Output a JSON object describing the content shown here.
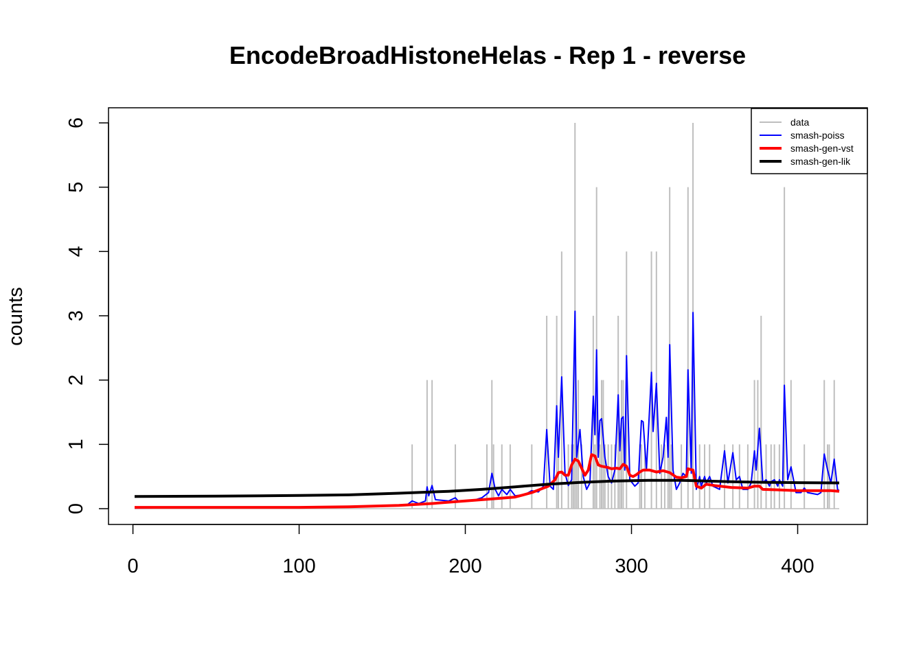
{
  "chart_data": {
    "type": "line",
    "title": "EncodeBroadHistoneHelas - Rep 1 - reverse",
    "xlabel": "",
    "ylabel": "counts",
    "xlim": [
      1,
      425
    ],
    "ylim": [
      0,
      6
    ],
    "x_ticks": [
      0,
      100,
      200,
      300,
      400
    ],
    "y_ticks": [
      0,
      1,
      2,
      3,
      4,
      5,
      6
    ],
    "grid": false,
    "legend_position": "top-right",
    "colors": {
      "data": "#bebebe",
      "smash_poiss": "#0000ff",
      "smash_gen_vst": "#ff0000",
      "smash_gen_lik": "#000000"
    },
    "legend": [
      "data",
      "smash-poiss",
      "smash-gen-vst",
      "smash-gen-lik"
    ],
    "data_counts": [
      [
        168,
        1
      ],
      [
        177,
        2
      ],
      [
        180,
        2
      ],
      [
        194,
        1
      ],
      [
        213,
        1
      ],
      [
        216,
        2
      ],
      [
        217,
        1
      ],
      [
        222,
        1
      ],
      [
        227,
        1
      ],
      [
        240,
        1
      ],
      [
        249,
        3
      ],
      [
        255,
        3
      ],
      [
        256,
        1
      ],
      [
        258,
        4
      ],
      [
        262,
        1
      ],
      [
        264,
        1
      ],
      [
        265,
        1
      ],
      [
        266,
        6
      ],
      [
        267,
        1
      ],
      [
        268,
        2
      ],
      [
        270,
        1
      ],
      [
        277,
        3
      ],
      [
        278,
        1
      ],
      [
        279,
        5
      ],
      [
        281,
        1
      ],
      [
        282,
        2
      ],
      [
        283,
        2
      ],
      [
        284,
        1
      ],
      [
        286,
        1
      ],
      [
        288,
        1
      ],
      [
        290,
        1
      ],
      [
        292,
        3
      ],
      [
        293,
        1
      ],
      [
        294,
        2
      ],
      [
        295,
        2
      ],
      [
        297,
        4
      ],
      [
        305,
        1
      ],
      [
        306,
        1
      ],
      [
        308,
        1
      ],
      [
        312,
        4
      ],
      [
        315,
        4
      ],
      [
        318,
        1
      ],
      [
        320,
        1
      ],
      [
        322,
        1
      ],
      [
        323,
        5
      ],
      [
        324,
        1
      ],
      [
        330,
        1
      ],
      [
        334,
        5
      ],
      [
        337,
        6
      ],
      [
        341,
        1
      ],
      [
        344,
        1
      ],
      [
        347,
        1
      ],
      [
        356,
        1
      ],
      [
        361,
        1
      ],
      [
        365,
        1
      ],
      [
        370,
        1
      ],
      [
        374,
        2
      ],
      [
        376,
        2
      ],
      [
        378,
        3
      ],
      [
        381,
        1
      ],
      [
        384,
        1
      ],
      [
        386,
        1
      ],
      [
        389,
        1
      ],
      [
        392,
        5
      ],
      [
        396,
        2
      ],
      [
        404,
        1
      ],
      [
        416,
        2
      ],
      [
        418,
        1
      ],
      [
        419,
        1
      ],
      [
        422,
        2
      ]
    ],
    "smash_poiss": [
      [
        1,
        0.01
      ],
      [
        100,
        0.02
      ],
      [
        150,
        0.04
      ],
      [
        165,
        0.06
      ],
      [
        168,
        0.12
      ],
      [
        172,
        0.08
      ],
      [
        176,
        0.12
      ],
      [
        177,
        0.34
      ],
      [
        178,
        0.2
      ],
      [
        180,
        0.36
      ],
      [
        182,
        0.14
      ],
      [
        190,
        0.12
      ],
      [
        194,
        0.17
      ],
      [
        196,
        0.11
      ],
      [
        205,
        0.13
      ],
      [
        210,
        0.17
      ],
      [
        214,
        0.25
      ],
      [
        216,
        0.55
      ],
      [
        218,
        0.3
      ],
      [
        220,
        0.2
      ],
      [
        222,
        0.3
      ],
      [
        225,
        0.22
      ],
      [
        227,
        0.3
      ],
      [
        230,
        0.2
      ],
      [
        236,
        0.22
      ],
      [
        240,
        0.28
      ],
      [
        244,
        0.26
      ],
      [
        247,
        0.35
      ],
      [
        249,
        1.23
      ],
      [
        251,
        0.35
      ],
      [
        253,
        0.3
      ],
      [
        255,
        1.6
      ],
      [
        256,
        0.8
      ],
      [
        258,
        2.05
      ],
      [
        260,
        0.55
      ],
      [
        262,
        0.36
      ],
      [
        264,
        0.45
      ],
      [
        266,
        3.07
      ],
      [
        267,
        0.8
      ],
      [
        269,
        1.23
      ],
      [
        271,
        0.5
      ],
      [
        273,
        0.3
      ],
      [
        275,
        0.4
      ],
      [
        277,
        1.75
      ],
      [
        278,
        1.15
      ],
      [
        279,
        2.47
      ],
      [
        280,
        0.8
      ],
      [
        281,
        1.37
      ],
      [
        282,
        1.4
      ],
      [
        284,
        0.8
      ],
      [
        286,
        0.5
      ],
      [
        288,
        0.4
      ],
      [
        290,
        0.6
      ],
      [
        292,
        1.77
      ],
      [
        293,
        0.9
      ],
      [
        294,
        1.4
      ],
      [
        295,
        1.43
      ],
      [
        296,
        0.6
      ],
      [
        297,
        2.38
      ],
      [
        299,
        0.45
      ],
      [
        302,
        0.35
      ],
      [
        304,
        0.4
      ],
      [
        306,
        1.37
      ],
      [
        307,
        1.35
      ],
      [
        309,
        0.6
      ],
      [
        312,
        2.12
      ],
      [
        313,
        1.2
      ],
      [
        315,
        1.95
      ],
      [
        317,
        0.55
      ],
      [
        319,
        0.8
      ],
      [
        321,
        1.42
      ],
      [
        322,
        0.8
      ],
      [
        323,
        2.55
      ],
      [
        325,
        0.6
      ],
      [
        327,
        0.3
      ],
      [
        329,
        0.4
      ],
      [
        331,
        0.55
      ],
      [
        333,
        0.5
      ],
      [
        334,
        2.16
      ],
      [
        336,
        0.55
      ],
      [
        337,
        3.05
      ],
      [
        339,
        0.3
      ],
      [
        341,
        0.5
      ],
      [
        342,
        0.35
      ],
      [
        344,
        0.5
      ],
      [
        345,
        0.4
      ],
      [
        347,
        0.5
      ],
      [
        349,
        0.35
      ],
      [
        353,
        0.3
      ],
      [
        356,
        0.9
      ],
      [
        358,
        0.4
      ],
      [
        361,
        0.87
      ],
      [
        363,
        0.45
      ],
      [
        365,
        0.5
      ],
      [
        367,
        0.3
      ],
      [
        370,
        0.3
      ],
      [
        372,
        0.4
      ],
      [
        374,
        0.9
      ],
      [
        375,
        0.6
      ],
      [
        377,
        1.25
      ],
      [
        379,
        0.4
      ],
      [
        381,
        0.45
      ],
      [
        383,
        0.35
      ],
      [
        384,
        0.42
      ],
      [
        386,
        0.45
      ],
      [
        388,
        0.35
      ],
      [
        389,
        0.45
      ],
      [
        391,
        0.35
      ],
      [
        392,
        1.92
      ],
      [
        394,
        0.45
      ],
      [
        396,
        0.65
      ],
      [
        399,
        0.25
      ],
      [
        402,
        0.25
      ],
      [
        404,
        0.32
      ],
      [
        406,
        0.25
      ],
      [
        412,
        0.22
      ],
      [
        414,
        0.25
      ],
      [
        416,
        0.85
      ],
      [
        418,
        0.6
      ],
      [
        420,
        0.4
      ],
      [
        422,
        0.77
      ],
      [
        424,
        0.3
      ],
      [
        425,
        0.28
      ]
    ],
    "smash_gen_vst": [
      [
        1,
        0.02
      ],
      [
        100,
        0.02
      ],
      [
        130,
        0.03
      ],
      [
        160,
        0.05
      ],
      [
        180,
        0.08
      ],
      [
        200,
        0.12
      ],
      [
        215,
        0.15
      ],
      [
        230,
        0.18
      ],
      [
        240,
        0.25
      ],
      [
        247,
        0.32
      ],
      [
        250,
        0.35
      ],
      [
        254,
        0.45
      ],
      [
        256,
        0.56
      ],
      [
        258,
        0.57
      ],
      [
        260,
        0.52
      ],
      [
        262,
        0.52
      ],
      [
        264,
        0.68
      ],
      [
        266,
        0.77
      ],
      [
        268,
        0.74
      ],
      [
        270,
        0.63
      ],
      [
        272,
        0.52
      ],
      [
        274,
        0.6
      ],
      [
        276,
        0.84
      ],
      [
        278,
        0.82
      ],
      [
        280,
        0.68
      ],
      [
        282,
        0.66
      ],
      [
        286,
        0.64
      ],
      [
        288,
        0.62
      ],
      [
        291,
        0.63
      ],
      [
        293,
        0.62
      ],
      [
        295,
        0.69
      ],
      [
        297,
        0.66
      ],
      [
        299,
        0.52
      ],
      [
        301,
        0.5
      ],
      [
        303,
        0.53
      ],
      [
        305,
        0.57
      ],
      [
        307,
        0.6
      ],
      [
        311,
        0.6
      ],
      [
        315,
        0.57
      ],
      [
        319,
        0.59
      ],
      [
        323,
        0.56
      ],
      [
        327,
        0.49
      ],
      [
        330,
        0.48
      ],
      [
        333,
        0.5
      ],
      [
        334,
        0.62
      ],
      [
        337,
        0.6
      ],
      [
        339,
        0.35
      ],
      [
        342,
        0.32
      ],
      [
        345,
        0.38
      ],
      [
        350,
        0.36
      ],
      [
        360,
        0.33
      ],
      [
        370,
        0.32
      ],
      [
        374,
        0.35
      ],
      [
        377,
        0.35
      ],
      [
        379,
        0.3
      ],
      [
        390,
        0.29
      ],
      [
        400,
        0.28
      ],
      [
        410,
        0.28
      ],
      [
        420,
        0.28
      ],
      [
        425,
        0.27
      ]
    ],
    "smash_gen_lik": [
      [
        1,
        0.19
      ],
      [
        50,
        0.195
      ],
      [
        100,
        0.205
      ],
      [
        130,
        0.215
      ],
      [
        160,
        0.24
      ],
      [
        190,
        0.27
      ],
      [
        210,
        0.3
      ],
      [
        230,
        0.34
      ],
      [
        250,
        0.38
      ],
      [
        270,
        0.41
      ],
      [
        290,
        0.43
      ],
      [
        310,
        0.44
      ],
      [
        330,
        0.44
      ],
      [
        345,
        0.43
      ],
      [
        360,
        0.42
      ],
      [
        380,
        0.41
      ],
      [
        400,
        0.405
      ],
      [
        425,
        0.4
      ]
    ]
  }
}
